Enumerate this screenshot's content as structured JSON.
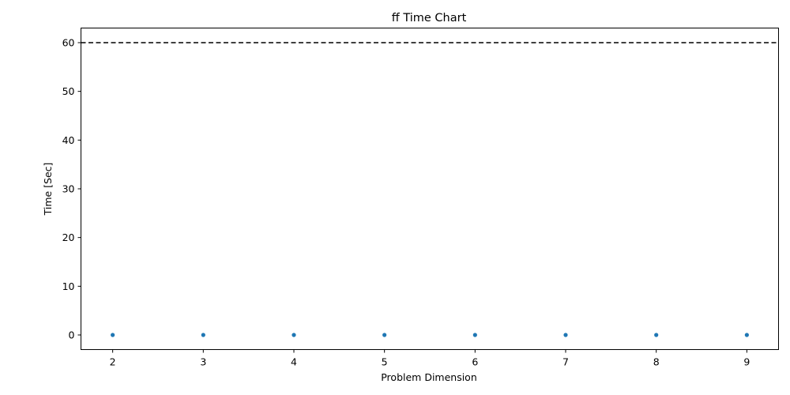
{
  "chart_data": {
    "type": "scatter",
    "title": "ff Time Chart",
    "xlabel": "Problem Dimension",
    "ylabel": "Time [Sec]",
    "xlim": [
      1.65,
      9.35
    ],
    "ylim": [
      -3,
      63
    ],
    "x_ticks": [
      2,
      3,
      4,
      5,
      6,
      7,
      8,
      9
    ],
    "y_ticks": [
      0,
      10,
      20,
      30,
      40,
      50,
      60
    ],
    "grid": false,
    "legend": "none",
    "series": [
      {
        "color": "#1f77b4",
        "x": [
          2,
          3,
          4,
          5,
          6,
          7,
          8,
          9
        ],
        "y": [
          0,
          0,
          0,
          0,
          0,
          0,
          0,
          0
        ]
      }
    ],
    "reference_lines": [
      {
        "orientation": "horizontal",
        "y": 60,
        "style": "dashed",
        "color": "#000000"
      }
    ]
  }
}
